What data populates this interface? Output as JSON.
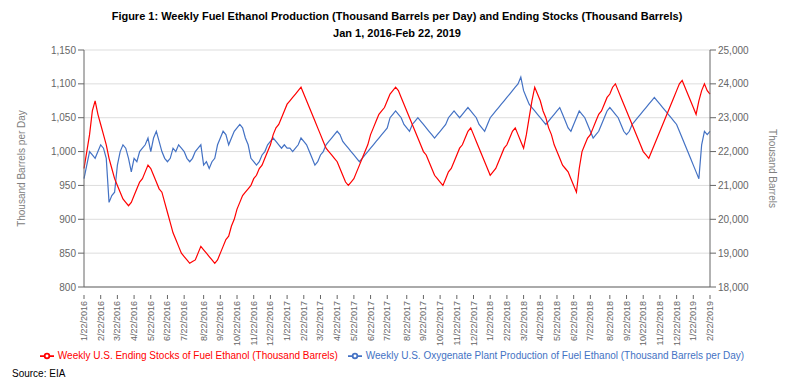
{
  "chart_data": {
    "type": "line",
    "title": "Figure 1: Weekly Fuel Ethanol Production (Thousand Barrels per Day) and Ending Stocks (Thousand Barrels)",
    "subtitle": "Jan 1, 2016-Feb 22, 2019",
    "ylabel": "Thousand Barrels per Day",
    "y2label": "Thousand Barrels",
    "annotations": [
      "Source: EIA"
    ],
    "categories": [
      "1/22/2016",
      null,
      null,
      null,
      null,
      null,
      "2/22/2016",
      null,
      null,
      null,
      null,
      null,
      "3/22/2016",
      null,
      null,
      null,
      null,
      null,
      "4/22/2016",
      null,
      null,
      null,
      null,
      null,
      "5/22/2016",
      null,
      null,
      null,
      null,
      null,
      "6/22/2016",
      null,
      null,
      null,
      null,
      null,
      "7/22/2016",
      null,
      null,
      null,
      null,
      null,
      null,
      "8/22/2016",
      null,
      null,
      null,
      null,
      null,
      "9/22/2016",
      null,
      null,
      null,
      null,
      null,
      "10/22/2016",
      null,
      null,
      null,
      null,
      null,
      "11/22/2016",
      null,
      null,
      null,
      null,
      null,
      "12/22/2016",
      null,
      null,
      null,
      null,
      null,
      "1/22/2017",
      null,
      null,
      null,
      null,
      null,
      "2/22/2017",
      null,
      null,
      null,
      null,
      null,
      "3/22/2017",
      null,
      null,
      null,
      null,
      null,
      "4/22/2017",
      null,
      null,
      null,
      null,
      null,
      "5/22/2017",
      null,
      null,
      null,
      null,
      null,
      "6/22/2017",
      null,
      null,
      null,
      null,
      null,
      "7/22/2017",
      null,
      null,
      null,
      null,
      null,
      null,
      "8/22/2017",
      null,
      null,
      null,
      null,
      null,
      "9/22/2017",
      null,
      null,
      null,
      null,
      null,
      "10/22/2017",
      null,
      null,
      null,
      null,
      null,
      "11/22/2017",
      null,
      null,
      null,
      null,
      null,
      "12/22/2017",
      null,
      null,
      null,
      null,
      null,
      "1/22/2018",
      null,
      null,
      null,
      null,
      null,
      "2/22/2018",
      null,
      null,
      null,
      null,
      null,
      "3/22/2018",
      null,
      null,
      null,
      null,
      null,
      "4/22/2018",
      null,
      null,
      null,
      null,
      null,
      "5/22/2018",
      null,
      null,
      null,
      null,
      null,
      "6/22/2018",
      null,
      null,
      null,
      null,
      null,
      "7/22/2018",
      null,
      null,
      null,
      null,
      null,
      null,
      "8/22/2018",
      null,
      null,
      null,
      null,
      null,
      "9/22/2018",
      null,
      null,
      null,
      null,
      null,
      "10/22/2018",
      null,
      null,
      null,
      null,
      null,
      "11/22/2018",
      null,
      null,
      null,
      null,
      null,
      "12/22/2018",
      null,
      null,
      null,
      null,
      null,
      "1/22/2019",
      null,
      null,
      null,
      null,
      null,
      "2/22/2019"
    ],
    "series": [
      {
        "name": "Weekly U.S. Oxygenate Plant Production of Fuel Ethanol  (Thousand Barrels per Day)",
        "color": "#4472C4",
        "values": [
          960,
          980,
          1000,
          995,
          990,
          1000,
          1010,
          1005,
          990,
          925,
          935,
          940,
          980,
          1000,
          1010,
          1005,
          990,
          970,
          990,
          985,
          1000,
          1005,
          1010,
          1020,
          1000,
          1020,
          1030,
          1015,
          1000,
          990,
          985,
          990,
          1005,
          1000,
          1010,
          1005,
          1000,
          990,
          985,
          990,
          1000,
          1005,
          1010,
          980,
          985,
          975,
          985,
          990,
          1010,
          1020,
          1030,
          1025,
          1010,
          1020,
          1030,
          1035,
          1040,
          1035,
          1020,
          1010,
          990,
          985,
          980,
          985,
          995,
          1000,
          1010,
          1015,
          1020,
          1015,
          1010,
          1005,
          1010,
          1005,
          1005,
          1000,
          1005,
          1010,
          1020,
          1015,
          1010,
          1000,
          990,
          980,
          985,
          995,
          1000,
          1010,
          1015,
          1020,
          1025,
          1030,
          1025,
          1015,
          1010,
          1005,
          1000,
          995,
          990,
          985,
          990,
          995,
          1000,
          1005,
          1010,
          1015,
          1020,
          1025,
          1030,
          1035,
          1050,
          1055,
          1060,
          1055,
          1050,
          1040,
          1035,
          1030,
          1040,
          1045,
          1050,
          1045,
          1040,
          1035,
          1030,
          1025,
          1020,
          1025,
          1030,
          1035,
          1040,
          1050,
          1055,
          1060,
          1055,
          1050,
          1055,
          1060,
          1065,
          1060,
          1055,
          1050,
          1040,
          1035,
          1030,
          1040,
          1050,
          1055,
          1060,
          1065,
          1070,
          1075,
          1080,
          1085,
          1090,
          1095,
          1100,
          1110,
          1090,
          1080,
          1070,
          1065,
          1060,
          1055,
          1050,
          1045,
          1040,
          1045,
          1050,
          1055,
          1060,
          1065,
          1055,
          1045,
          1035,
          1030,
          1040,
          1050,
          1060,
          1055,
          1050,
          1040,
          1030,
          1020,
          1025,
          1030,
          1040,
          1050,
          1060,
          1065,
          1060,
          1055,
          1050,
          1040,
          1030,
          1025,
          1030,
          1040,
          1045,
          1050,
          1055,
          1060,
          1065,
          1070,
          1075,
          1080,
          1075,
          1070,
          1065,
          1060,
          1055,
          1050,
          1045,
          1040,
          1030,
          1020,
          1010,
          1000,
          990,
          980,
          970,
          960,
          1010,
          1030,
          1025,
          1030
        ]
      },
      {
        "name": "Weekly U.S. Ending Stocks of Fuel Ethanol  (Thousand Barrels)",
        "color": "#FF0000",
        "axis": "y2",
        "values": [
          21500,
          22000,
          22500,
          23200,
          23500,
          23100,
          22800,
          22500,
          22200,
          21800,
          21500,
          21200,
          21000,
          20800,
          20600,
          20500,
          20400,
          20500,
          20700,
          20900,
          21100,
          21200,
          21400,
          21600,
          21500,
          21300,
          21100,
          20900,
          20800,
          20500,
          20200,
          19900,
          19600,
          19400,
          19200,
          19000,
          18900,
          18800,
          18700,
          18750,
          18800,
          19000,
          19200,
          19100,
          19000,
          18900,
          18800,
          18700,
          18800,
          19000,
          19200,
          19400,
          19500,
          19800,
          20000,
          20300,
          20500,
          20700,
          20800,
          20900,
          21000,
          21200,
          21300,
          21500,
          21600,
          21800,
          22000,
          22200,
          22500,
          22700,
          22800,
          23000,
          23200,
          23400,
          23500,
          23600,
          23700,
          23800,
          23900,
          23700,
          23500,
          23300,
          23100,
          22900,
          22700,
          22500,
          22300,
          22100,
          22000,
          21900,
          21800,
          21700,
          21500,
          21300,
          21100,
          21000,
          21100,
          21200,
          21400,
          21600,
          21800,
          22000,
          22200,
          22500,
          22700,
          22900,
          23100,
          23200,
          23300,
          23500,
          23700,
          23800,
          23900,
          23800,
          23600,
          23400,
          23200,
          23000,
          22800,
          22600,
          22400,
          22200,
          22000,
          21900,
          21700,
          21500,
          21300,
          21200,
          21100,
          21000,
          21200,
          21400,
          21500,
          21700,
          21900,
          22100,
          22200,
          22400,
          22600,
          22700,
          22500,
          22300,
          22100,
          21900,
          21700,
          21500,
          21300,
          21400,
          21500,
          21700,
          21900,
          22100,
          22200,
          22400,
          22600,
          22700,
          22500,
          22300,
          22100,
          22500,
          23000,
          23500,
          23900,
          23700,
          23500,
          23200,
          23000,
          22700,
          22500,
          22200,
          22000,
          21800,
          21600,
          21500,
          21400,
          21200,
          21000,
          20800,
          21500,
          22000,
          22200,
          22400,
          22500,
          22700,
          22900,
          23100,
          23200,
          23400,
          23600,
          23700,
          23900,
          24000,
          23800,
          23600,
          23400,
          23200,
          23000,
          22800,
          22600,
          22400,
          22200,
          22000,
          21900,
          21800,
          22000,
          22200,
          22400,
          22600,
          22800,
          23000,
          23200,
          23400,
          23600,
          23800,
          24000,
          24100,
          23900,
          23700,
          23500,
          23300,
          23100,
          23500,
          23800,
          24000,
          23800,
          23700
        ]
      }
    ],
    "ylim": [
      800,
      1150
    ],
    "yticks": [
      800,
      850,
      900,
      950,
      {
        "value": 1000,
        "label": "1,000"
      },
      {
        "value": 1050,
        "label": "1,050"
      },
      {
        "value": 1100,
        "label": "1,100"
      },
      {
        "value": 1150,
        "label": "1,150"
      }
    ],
    "y2lim": [
      18000,
      25000
    ],
    "y2ticks": [
      {
        "value": 18000,
        "label": "18,000"
      },
      {
        "value": 19000,
        "label": "19,000"
      },
      {
        "value": 20000,
        "label": "20,000"
      },
      {
        "value": 21000,
        "label": "21,000"
      },
      {
        "value": 22000,
        "label": "22,000"
      },
      {
        "value": 23000,
        "label": "23,000"
      },
      {
        "value": 24000,
        "label": "24,000"
      },
      {
        "value": 25000,
        "label": "25,000"
      }
    ],
    "grid": true,
    "legend": "bottom"
  }
}
